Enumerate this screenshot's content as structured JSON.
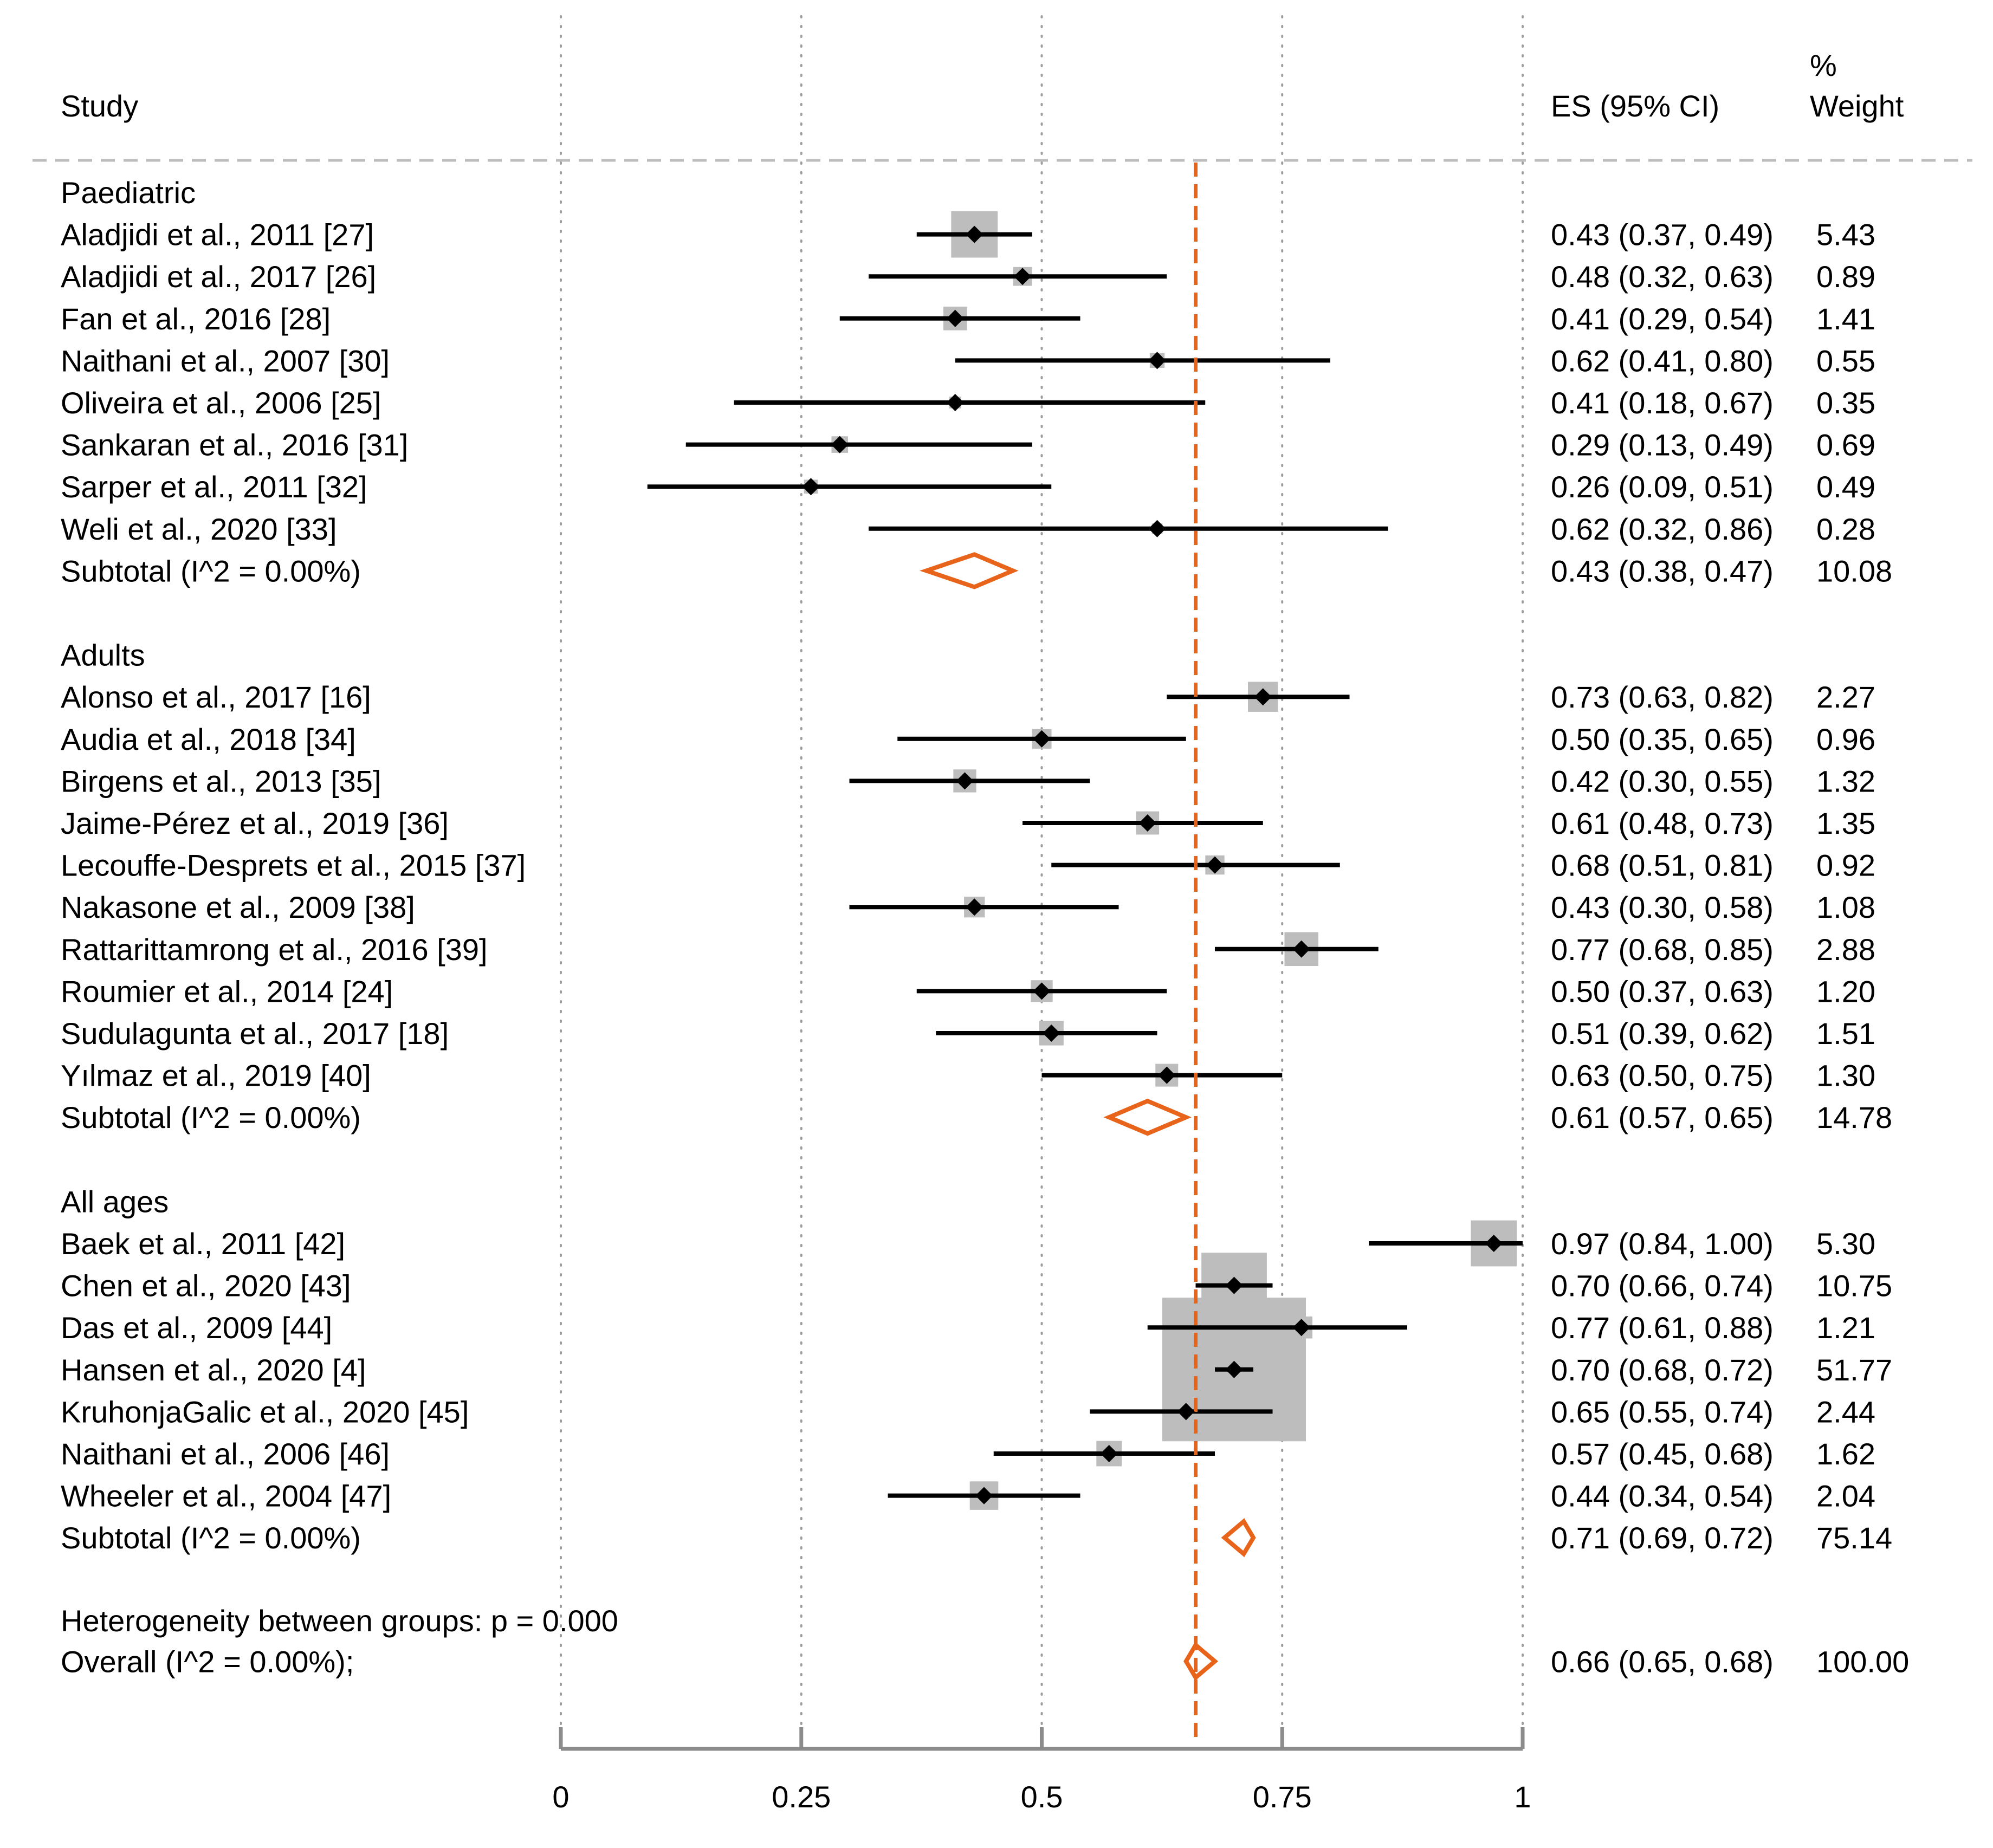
{
  "header": {
    "study_label": "Study",
    "es_label": "ES (95% CI)",
    "weight_label_line1": "%",
    "weight_label_line2": "Weight"
  },
  "colors": {
    "diamond": "#E8641B",
    "overall_line": "#E8641B",
    "weight_box": "#BDBDBD",
    "ci_line": "#000000",
    "grid": "#9E9E9E",
    "axis": "#8C8C8C",
    "separator": "#BDBDBD"
  },
  "chart_data": {
    "type": "forest",
    "xlim": [
      0,
      1
    ],
    "x_ticks": [
      0,
      0.25,
      0.5,
      0.75,
      1
    ],
    "x_tick_labels": [
      "0",
      "0.25",
      "0.5",
      "0.75",
      "1"
    ],
    "grid": "dotted vertical at ticks",
    "overall_line_x": 0.66,
    "groups": [
      {
        "name": "Paediatric",
        "studies": [
          {
            "label": "Aladjidi et al., 2011 [27]",
            "es": 0.43,
            "lo": 0.37,
            "hi": 0.49,
            "es_text": "0.43 (0.37, 0.49)",
            "weight": 5.43,
            "weight_text": "5.43"
          },
          {
            "label": "Aladjidi et al., 2017 [26]",
            "es": 0.48,
            "lo": 0.32,
            "hi": 0.63,
            "es_text": "0.48 (0.32, 0.63)",
            "weight": 0.89,
            "weight_text": "0.89"
          },
          {
            "label": "Fan et al., 2016 [28]",
            "es": 0.41,
            "lo": 0.29,
            "hi": 0.54,
            "es_text": "0.41 (0.29, 0.54)",
            "weight": 1.41,
            "weight_text": "1.41"
          },
          {
            "label": "Naithani et al., 2007 [30]",
            "es": 0.62,
            "lo": 0.41,
            "hi": 0.8,
            "es_text": "0.62 (0.41, 0.80)",
            "weight": 0.55,
            "weight_text": "0.55"
          },
          {
            "label": "Oliveira et al., 2006 [25]",
            "es": 0.41,
            "lo": 0.18,
            "hi": 0.67,
            "es_text": "0.41 (0.18, 0.67)",
            "weight": 0.35,
            "weight_text": "0.35"
          },
          {
            "label": "Sankaran et al., 2016 [31]",
            "es": 0.29,
            "lo": 0.13,
            "hi": 0.49,
            "es_text": "0.29 (0.13, 0.49)",
            "weight": 0.69,
            "weight_text": "0.69"
          },
          {
            "label": "Sarper et al., 2011 [32]",
            "es": 0.26,
            "lo": 0.09,
            "hi": 0.51,
            "es_text": "0.26 (0.09, 0.51)",
            "weight": 0.49,
            "weight_text": "0.49"
          },
          {
            "label": "Weli et al., 2020 [33]",
            "es": 0.62,
            "lo": 0.32,
            "hi": 0.86,
            "es_text": "0.62 (0.32, 0.86)",
            "weight": 0.28,
            "weight_text": "0.28"
          }
        ],
        "subtotal": {
          "label": "Subtotal  (I^2 = 0.00%)",
          "es": 0.43,
          "lo": 0.38,
          "hi": 0.47,
          "es_text": "0.43 (0.38, 0.47)",
          "weight_text": "10.08"
        }
      },
      {
        "name": "Adults",
        "studies": [
          {
            "label": "Alonso et al., 2017 [16]",
            "es": 0.73,
            "lo": 0.63,
            "hi": 0.82,
            "es_text": "0.73 (0.63, 0.82)",
            "weight": 2.27,
            "weight_text": "2.27"
          },
          {
            "label": "Audia et al., 2018 [34]",
            "es": 0.5,
            "lo": 0.35,
            "hi": 0.65,
            "es_text": "0.50 (0.35, 0.65)",
            "weight": 0.96,
            "weight_text": "0.96"
          },
          {
            "label": "Birgens et al., 2013 [35]",
            "es": 0.42,
            "lo": 0.3,
            "hi": 0.55,
            "es_text": "0.42 (0.30, 0.55)",
            "weight": 1.32,
            "weight_text": "1.32"
          },
          {
            "label": "Jaime-Pérez et al., 2019 [36]",
            "es": 0.61,
            "lo": 0.48,
            "hi": 0.73,
            "es_text": "0.61 (0.48, 0.73)",
            "weight": 1.35,
            "weight_text": "1.35"
          },
          {
            "label": "Lecouffe-Desprets et al., 2015 [37]",
            "es": 0.68,
            "lo": 0.51,
            "hi": 0.81,
            "es_text": "0.68 (0.51, 0.81)",
            "weight": 0.92,
            "weight_text": "0.92"
          },
          {
            "label": "Nakasone et al., 2009 [38]",
            "es": 0.43,
            "lo": 0.3,
            "hi": 0.58,
            "es_text": "0.43 (0.30, 0.58)",
            "weight": 1.08,
            "weight_text": "1.08"
          },
          {
            "label": "Rattarittamrong et al., 2016 [39]",
            "es": 0.77,
            "lo": 0.68,
            "hi": 0.85,
            "es_text": "0.77 (0.68, 0.85)",
            "weight": 2.88,
            "weight_text": "2.88"
          },
          {
            "label": "Roumier et al., 2014 [24]",
            "es": 0.5,
            "lo": 0.37,
            "hi": 0.63,
            "es_text": "0.50 (0.37, 0.63)",
            "weight": 1.2,
            "weight_text": "1.20"
          },
          {
            "label": "Sudulagunta et al., 2017 [18]",
            "es": 0.51,
            "lo": 0.39,
            "hi": 0.62,
            "es_text": "0.51 (0.39, 0.62)",
            "weight": 1.51,
            "weight_text": "1.51"
          },
          {
            "label": "Yılmaz et al., 2019 [40]",
            "es": 0.63,
            "lo": 0.5,
            "hi": 0.75,
            "es_text": "0.63 (0.50, 0.75)",
            "weight": 1.3,
            "weight_text": "1.30"
          }
        ],
        "subtotal": {
          "label": "Subtotal  (I^2 = 0.00%)",
          "es": 0.61,
          "lo": 0.57,
          "hi": 0.65,
          "es_text": "0.61 (0.57, 0.65)",
          "weight_text": "14.78"
        }
      },
      {
        "name": "All ages",
        "studies": [
          {
            "label": "Baek et al., 2011 [42]",
            "es": 0.97,
            "lo": 0.84,
            "hi": 1.0,
            "es_text": "0.97 (0.84, 1.00)",
            "weight": 5.3,
            "weight_text": "5.30"
          },
          {
            "label": "Chen et al., 2020 [43]",
            "es": 0.7,
            "lo": 0.66,
            "hi": 0.74,
            "es_text": "0.70 (0.66, 0.74)",
            "weight": 10.75,
            "weight_text": "10.75"
          },
          {
            "label": "Das et al., 2009 [44]",
            "es": 0.77,
            "lo": 0.61,
            "hi": 0.88,
            "es_text": "0.77 (0.61, 0.88)",
            "weight": 1.21,
            "weight_text": "1.21"
          },
          {
            "label": "Hansen et al., 2020 [4]",
            "es": 0.7,
            "lo": 0.68,
            "hi": 0.72,
            "es_text": "0.70 (0.68, 0.72)",
            "weight": 51.77,
            "weight_text": "51.77"
          },
          {
            "label": "KruhonjaGalic et al., 2020 [45]",
            "es": 0.65,
            "lo": 0.55,
            "hi": 0.74,
            "es_text": "0.65 (0.55, 0.74)",
            "weight": 2.44,
            "weight_text": "2.44"
          },
          {
            "label": "Naithani et al., 2006 [46]",
            "es": 0.57,
            "lo": 0.45,
            "hi": 0.68,
            "es_text": "0.57 (0.45, 0.68)",
            "weight": 1.62,
            "weight_text": "1.62"
          },
          {
            "label": "Wheeler et al., 2004 [47]",
            "es": 0.44,
            "lo": 0.34,
            "hi": 0.54,
            "es_text": "0.44 (0.34, 0.54)",
            "weight": 2.04,
            "weight_text": "2.04"
          }
        ],
        "subtotal": {
          "label": "Subtotal  (I^2 = 0.00%)",
          "es": 0.71,
          "lo": 0.69,
          "hi": 0.72,
          "es_text": "0.71 (0.69, 0.72)",
          "weight_text": "75.14"
        }
      }
    ],
    "heterogeneity_text": "Heterogeneity between groups: p = 0.000",
    "overall": {
      "label": "Overall  (I^2 = 0.00%);",
      "es": 0.66,
      "lo": 0.65,
      "hi": 0.68,
      "es_text": "0.66 (0.65, 0.68)",
      "weight_text": "100.00"
    }
  }
}
